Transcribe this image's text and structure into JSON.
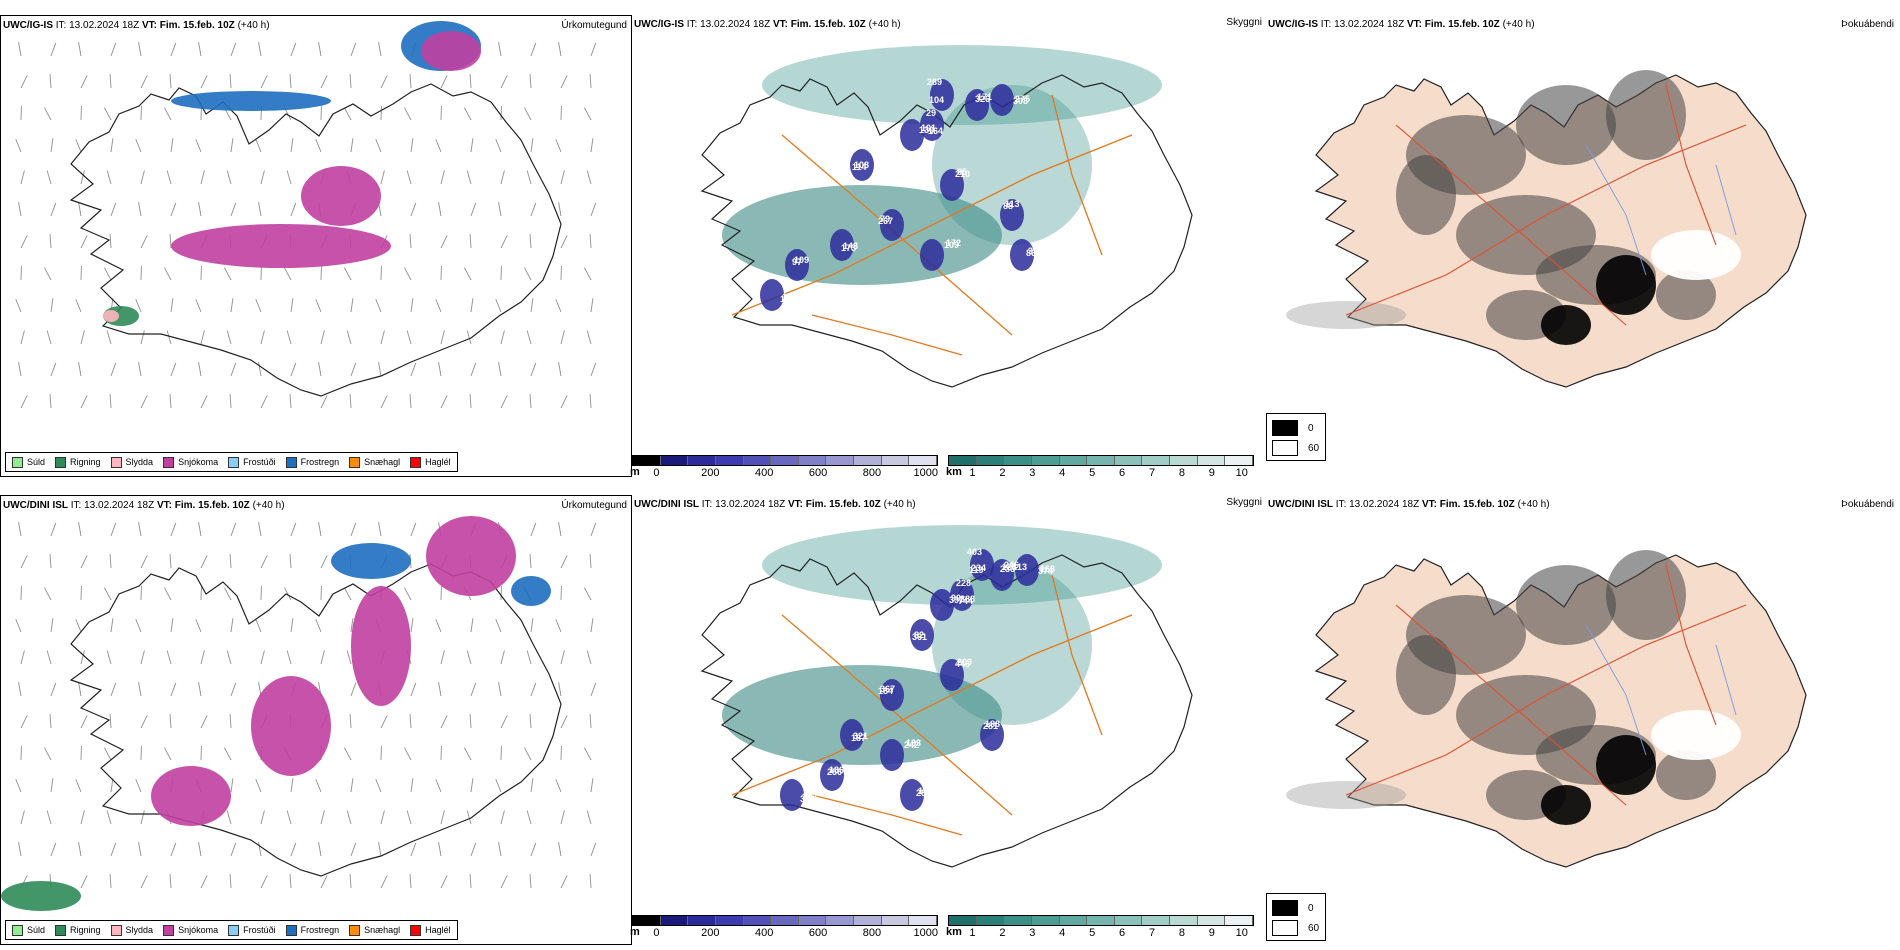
{
  "rows": [
    {
      "model": "UWC/IG-IS",
      "it_label": "IT:",
      "it_value": "13.02.2024 18Z",
      "vt_label": "VT:",
      "vt_value": "Fim. 15.feb. 10Z",
      "lead": "(+40 h)"
    },
    {
      "model": "UWC/DINI ISL",
      "it_label": "IT:",
      "it_value": "13.02.2024 18Z",
      "vt_label": "VT:",
      "vt_value": "Fim. 15.feb. 10Z",
      "lead": "(+40 h)"
    }
  ],
  "titles": {
    "precip_type": "Úrkomutegund",
    "visibility": "Skyggni",
    "fog": "Þokuábendi"
  },
  "precip_legend": [
    {
      "label": "Súld",
      "color": "#90ee90"
    },
    {
      "label": "Rigning",
      "color": "#2e8b57"
    },
    {
      "label": "Slydda",
      "color": "#ffb6c1"
    },
    {
      "label": "Snjókoma",
      "color": "#c040a0"
    },
    {
      "label": "Frostúði",
      "color": "#87cefa"
    },
    {
      "label": "Frostregn",
      "color": "#1e6fc0"
    },
    {
      "label": "Snæhagl",
      "color": "#ff8c00"
    },
    {
      "label": "Haglél",
      "color": "#ff0000"
    }
  ],
  "ceiling_bar": {
    "unit": "m",
    "ticks": [
      "0",
      "200",
      "400",
      "600",
      "800",
      "1000"
    ],
    "colors": [
      "#000000",
      "#1a1a7a",
      "#2b2b9b",
      "#3c3cb0",
      "#5050b8",
      "#6868c0",
      "#8080c8",
      "#9898d0",
      "#b0b0d8",
      "#c8c8e0",
      "#e0e0f0"
    ]
  },
  "visibility_bar": {
    "unit": "km",
    "ticks": [
      "1",
      "2",
      "3",
      "4",
      "5",
      "6",
      "7",
      "8",
      "9",
      "10"
    ],
    "colors": [
      "#1f6f6a",
      "#2a7f78",
      "#3a8f86",
      "#4c9d94",
      "#5fa9a1",
      "#74b5ad",
      "#8ac1b9",
      "#a2cdc6",
      "#bad9d3",
      "#d3e6e2",
      "#eaf3f1"
    ]
  },
  "fog_legend": [
    {
      "label": "0",
      "color": "#000000"
    },
    {
      "label": "60",
      "color": "#ffffff"
    }
  ],
  "ceiling_labels": [
    [
      "289",
      "326",
      "308",
      "29",
      "130",
      "114",
      "210",
      "267",
      "173",
      "109",
      "97",
      "165",
      "88",
      "86",
      "104",
      "171",
      "275",
      "164",
      "101",
      "108",
      "85",
      "79",
      "148",
      "172",
      "109",
      "192",
      "113",
      "33"
    ],
    [
      "403",
      "236",
      "374",
      "228",
      "397",
      "361",
      "446",
      "184",
      "187",
      "242",
      "256",
      "309",
      "281",
      "252",
      "119",
      "121",
      "163",
      "744",
      "90",
      "82",
      "209",
      "367",
      "321",
      "133",
      "186",
      "322",
      "188",
      "130",
      "234",
      "246",
      "313",
      "388"
    ]
  ]
}
